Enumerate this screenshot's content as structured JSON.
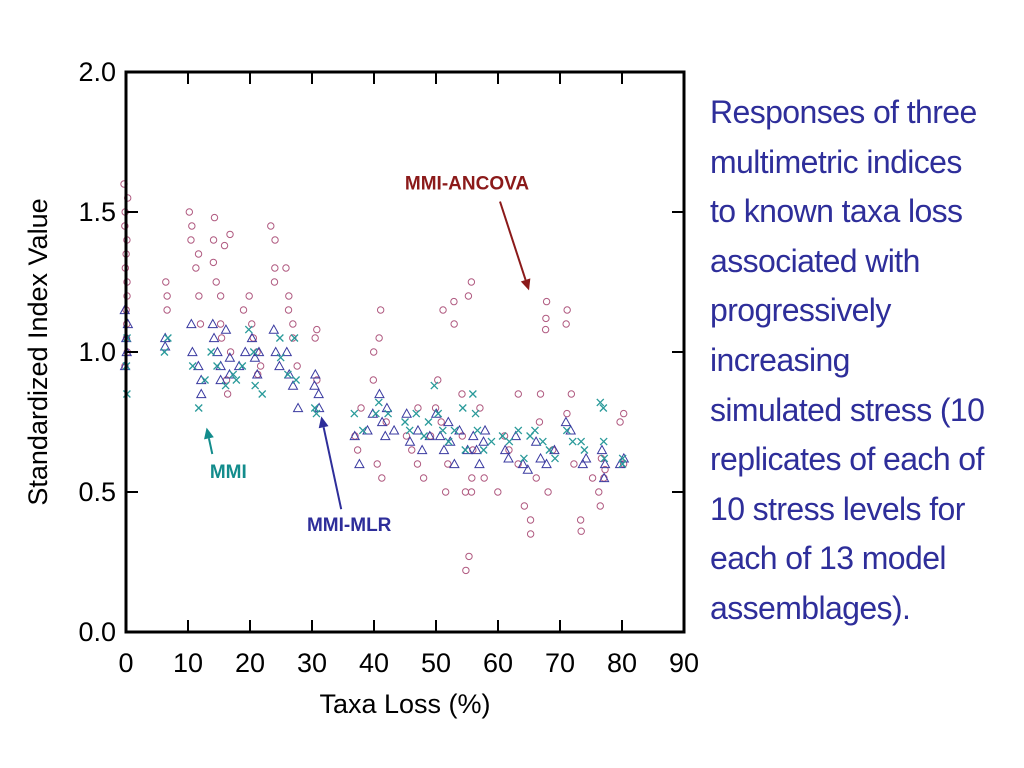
{
  "chart_data": {
    "type": "scatter",
    "xlabel": "Taxa Loss (%)",
    "ylabel": "Standardized Index Value",
    "xlim": [
      0,
      90
    ],
    "ylim": [
      0.0,
      2.0
    ],
    "xticks": [
      "0",
      "10",
      "20",
      "30",
      "40",
      "50",
      "60",
      "70",
      "80",
      "90"
    ],
    "yticks": [
      "0.0",
      "0.5",
      "1.0",
      "1.5",
      "2.0"
    ],
    "grid": false,
    "annotations": [
      {
        "text": "MMI-ANCOVA",
        "color": "#8b1a1a",
        "arrow_to": [
          65,
          1.22
        ],
        "label_at": [
          55,
          1.58
        ]
      },
      {
        "text": "MMI",
        "color": "#138c8c",
        "arrow_to": [
          13,
          0.73
        ],
        "label_at": [
          16.5,
          0.55
        ]
      },
      {
        "text": "MMI-MLR",
        "color": "#2e2e9a",
        "arrow_to": [
          31.5,
          0.77
        ],
        "label_at": [
          36,
          0.36
        ]
      }
    ],
    "series": [
      {
        "name": "MMI-ANCOVA",
        "marker": "circle",
        "color": "#b05a80",
        "points": [
          [
            0,
            1.6
          ],
          [
            0,
            1.55
          ],
          [
            0,
            1.5
          ],
          [
            0,
            1.45
          ],
          [
            0,
            1.4
          ],
          [
            0,
            1.35
          ],
          [
            0,
            1.3
          ],
          [
            0,
            1.25
          ],
          [
            0,
            1.2
          ],
          [
            0,
            1.15
          ],
          [
            0,
            1.1
          ],
          [
            0,
            1.05
          ],
          [
            0,
            1.0
          ],
          [
            0,
            0.95
          ],
          [
            6.5,
            1.25
          ],
          [
            6.5,
            1.2
          ],
          [
            6.5,
            1.15
          ],
          [
            10.5,
            1.5
          ],
          [
            10.5,
            1.45
          ],
          [
            10.5,
            1.4
          ],
          [
            11,
            1.3
          ],
          [
            11.5,
            1.35
          ],
          [
            12,
            1.2
          ],
          [
            12,
            1.1
          ],
          [
            14,
            1.48
          ],
          [
            14,
            1.4
          ],
          [
            14,
            1.32
          ],
          [
            14.5,
            1.25
          ],
          [
            15,
            1.2
          ],
          [
            15,
            1.1
          ],
          [
            15.5,
            1.05
          ],
          [
            16,
            1.38
          ],
          [
            16,
            0.9
          ],
          [
            16.5,
            0.85
          ],
          [
            17,
            1.42
          ],
          [
            17,
            1.0
          ],
          [
            19,
            1.15
          ],
          [
            20,
            1.2
          ],
          [
            20,
            1.1
          ],
          [
            20.5,
            1.05
          ],
          [
            21,
            1.0
          ],
          [
            21,
            0.92
          ],
          [
            22,
            0.95
          ],
          [
            23.5,
            1.45
          ],
          [
            24,
            1.4
          ],
          [
            24,
            1.3
          ],
          [
            24,
            1.25
          ],
          [
            26,
            1.3
          ],
          [
            26,
            1.2
          ],
          [
            26.5,
            1.15
          ],
          [
            27,
            1.1
          ],
          [
            27,
            1.05
          ],
          [
            27.5,
            0.95
          ],
          [
            30.5,
            1.08
          ],
          [
            30.5,
            1.05
          ],
          [
            31,
            0.9
          ],
          [
            37,
            0.7
          ],
          [
            37.5,
            0.65
          ],
          [
            38,
            0.8
          ],
          [
            40,
            1.0
          ],
          [
            40,
            0.9
          ],
          [
            40.5,
            0.6
          ],
          [
            41,
            1.15
          ],
          [
            41,
            1.05
          ],
          [
            41,
            0.55
          ],
          [
            42,
            0.75
          ],
          [
            45,
            0.7
          ],
          [
            46,
            0.65
          ],
          [
            47,
            0.8
          ],
          [
            47,
            0.6
          ],
          [
            48,
            0.55
          ],
          [
            49,
            0.7
          ],
          [
            50,
            0.9
          ],
          [
            50,
            0.8
          ],
          [
            51,
            1.15
          ],
          [
            51,
            0.75
          ],
          [
            51.5,
            0.5
          ],
          [
            52,
            0.6
          ],
          [
            53,
            1.18
          ],
          [
            53,
            1.1
          ],
          [
            54,
            0.85
          ],
          [
            54,
            0.7
          ],
          [
            55,
            0.5
          ],
          [
            55.5,
            1.25
          ],
          [
            55.5,
            1.2
          ],
          [
            56,
            0.65
          ],
          [
            56,
            0.55
          ],
          [
            56,
            0.5
          ],
          [
            55,
            0.27
          ],
          [
            55,
            0.22
          ],
          [
            57,
            0.8
          ],
          [
            58,
            0.55
          ],
          [
            60,
            0.5
          ],
          [
            61,
            0.7
          ],
          [
            62,
            0.65
          ],
          [
            63,
            0.85
          ],
          [
            63,
            0.6
          ],
          [
            64,
            0.45
          ],
          [
            65,
            0.4
          ],
          [
            65,
            0.35
          ],
          [
            66,
            0.55
          ],
          [
            67,
            0.85
          ],
          [
            67,
            0.75
          ],
          [
            68,
            1.18
          ],
          [
            68,
            1.12
          ],
          [
            68,
            1.08
          ],
          [
            68,
            0.5
          ],
          [
            69,
            0.65
          ],
          [
            71,
            1.15
          ],
          [
            71,
            1.1
          ],
          [
            71,
            0.78
          ],
          [
            72,
            0.85
          ],
          [
            72,
            0.6
          ],
          [
            73.5,
            0.4
          ],
          [
            73.5,
            0.36
          ],
          [
            75,
            0.55
          ],
          [
            76.5,
            0.5
          ],
          [
            76.5,
            0.45
          ],
          [
            77,
            0.62
          ],
          [
            77,
            0.58
          ],
          [
            77,
            0.55
          ],
          [
            80,
            0.78
          ],
          [
            80,
            0.75
          ],
          [
            80,
            0.6
          ]
        ]
      },
      {
        "name": "MMI-MLR",
        "marker": "triangle",
        "color": "#3a3aa0",
        "points": [
          [
            0,
            1.15
          ],
          [
            0,
            1.1
          ],
          [
            0,
            1.05
          ],
          [
            0,
            1.0
          ],
          [
            0,
            0.95
          ],
          [
            6.5,
            1.05
          ],
          [
            6.5,
            1.02
          ],
          [
            10.5,
            1.1
          ],
          [
            11,
            1.0
          ],
          [
            11.5,
            0.95
          ],
          [
            12,
            0.9
          ],
          [
            12,
            0.85
          ],
          [
            14,
            1.1
          ],
          [
            14.5,
            1.05
          ],
          [
            15,
            1.0
          ],
          [
            15,
            0.95
          ],
          [
            15.5,
            0.9
          ],
          [
            16,
            1.08
          ],
          [
            16.5,
            0.98
          ],
          [
            17,
            0.92
          ],
          [
            18,
            0.95
          ],
          [
            19,
            1.0
          ],
          [
            20,
            1.05
          ],
          [
            20.5,
            0.98
          ],
          [
            21,
            0.92
          ],
          [
            21.5,
            1.0
          ],
          [
            24,
            1.08
          ],
          [
            24,
            1.0
          ],
          [
            24.5,
            0.95
          ],
          [
            26,
            1.0
          ],
          [
            26.5,
            0.92
          ],
          [
            27,
            0.88
          ],
          [
            27.5,
            0.8
          ],
          [
            30.5,
            0.92
          ],
          [
            30.5,
            0.88
          ],
          [
            31,
            0.85
          ],
          [
            31,
            0.8
          ],
          [
            37,
            0.7
          ],
          [
            37.5,
            0.6
          ],
          [
            39,
            0.72
          ],
          [
            40,
            0.78
          ],
          [
            41,
            0.85
          ],
          [
            41,
            0.75
          ],
          [
            41.5,
            0.7
          ],
          [
            42,
            0.8
          ],
          [
            43,
            0.72
          ],
          [
            45,
            0.78
          ],
          [
            46,
            0.68
          ],
          [
            47,
            0.72
          ],
          [
            48,
            0.65
          ],
          [
            49,
            0.7
          ],
          [
            50,
            0.78
          ],
          [
            50.5,
            0.7
          ],
          [
            51,
            0.65
          ],
          [
            52,
            0.75
          ],
          [
            52.5,
            0.68
          ],
          [
            53,
            0.6
          ],
          [
            54,
            0.72
          ],
          [
            55,
            0.65
          ],
          [
            56,
            0.7
          ],
          [
            56.5,
            0.65
          ],
          [
            57,
            0.6
          ],
          [
            57.5,
            0.68
          ],
          [
            58,
            0.72
          ],
          [
            61,
            0.65
          ],
          [
            62,
            0.62
          ],
          [
            63,
            0.7
          ],
          [
            64,
            0.6
          ],
          [
            65,
            0.58
          ],
          [
            66,
            0.68
          ],
          [
            67,
            0.62
          ],
          [
            68,
            0.6
          ],
          [
            69,
            0.65
          ],
          [
            71,
            0.75
          ],
          [
            72,
            0.72
          ],
          [
            73.5,
            0.6
          ],
          [
            74,
            0.62
          ],
          [
            76.5,
            0.65
          ],
          [
            77,
            0.6
          ],
          [
            77,
            0.55
          ],
          [
            80,
            0.62
          ],
          [
            80,
            0.6
          ]
        ]
      },
      {
        "name": "MMI",
        "marker": "x",
        "color": "#2a9a9a",
        "points": [
          [
            0,
            1.05
          ],
          [
            0,
            0.95
          ],
          [
            0,
            0.85
          ],
          [
            6.5,
            1.05
          ],
          [
            6.5,
            1.0
          ],
          [
            11,
            0.95
          ],
          [
            12,
            0.8
          ],
          [
            13,
            0.9
          ],
          [
            14,
            1.0
          ],
          [
            15,
            0.95
          ],
          [
            16,
            0.88
          ],
          [
            17,
            0.92
          ],
          [
            18,
            0.9
          ],
          [
            19,
            0.95
          ],
          [
            20,
            1.08
          ],
          [
            20.5,
            1.0
          ],
          [
            21,
            0.88
          ],
          [
            22,
            0.85
          ],
          [
            24.5,
            1.05
          ],
          [
            25,
            0.98
          ],
          [
            26,
            0.92
          ],
          [
            27,
            1.05
          ],
          [
            27.5,
            0.9
          ],
          [
            30.5,
            0.8
          ],
          [
            31,
            0.78
          ],
          [
            37,
            0.78
          ],
          [
            38,
            0.72
          ],
          [
            40,
            0.78
          ],
          [
            41,
            0.82
          ],
          [
            42,
            0.78
          ],
          [
            45,
            0.75
          ],
          [
            46,
            0.72
          ],
          [
            47,
            0.78
          ],
          [
            48,
            0.7
          ],
          [
            49,
            0.75
          ],
          [
            50,
            0.88
          ],
          [
            50.5,
            0.78
          ],
          [
            51,
            0.72
          ],
          [
            52,
            0.68
          ],
          [
            53,
            0.72
          ],
          [
            54,
            0.8
          ],
          [
            55,
            0.65
          ],
          [
            56,
            0.85
          ],
          [
            56.5,
            0.78
          ],
          [
            57,
            0.72
          ],
          [
            58,
            0.65
          ],
          [
            59,
            0.68
          ],
          [
            61,
            0.7
          ],
          [
            62,
            0.68
          ],
          [
            63,
            0.72
          ],
          [
            64,
            0.62
          ],
          [
            65,
            0.7
          ],
          [
            66,
            0.72
          ],
          [
            67,
            0.68
          ],
          [
            68,
            0.65
          ],
          [
            69,
            0.62
          ],
          [
            71,
            0.72
          ],
          [
            72,
            0.68
          ],
          [
            73.5,
            0.68
          ],
          [
            74,
            0.65
          ],
          [
            76.5,
            0.82
          ],
          [
            77,
            0.8
          ],
          [
            77,
            0.68
          ],
          [
            77,
            0.62
          ],
          [
            80,
            0.62
          ],
          [
            80,
            0.6
          ]
        ]
      }
    ]
  },
  "caption": {
    "lines": [
      "Responses of three",
      "multimetric indices",
      "to known taxa loss",
      "associated with",
      "progressively",
      "increasing",
      "simulated stress (10",
      "replicates of each of",
      "10 stress levels for",
      "each of 13 model",
      "assemblages)."
    ]
  }
}
